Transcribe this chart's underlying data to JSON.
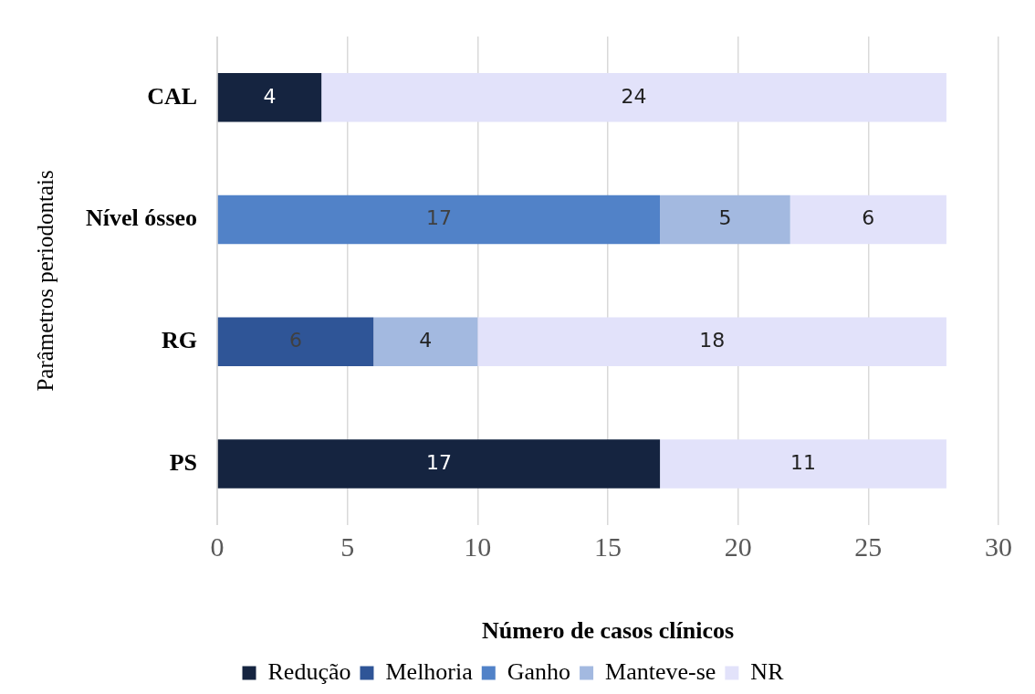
{
  "chart_data": {
    "type": "bar",
    "orientation": "horizontal",
    "stacked": true,
    "categories": [
      "CAL",
      "Nível ósseo",
      "RG",
      "PS"
    ],
    "series": [
      {
        "name": "Redução",
        "color": "#152440",
        "values": [
          4,
          null,
          null,
          17
        ]
      },
      {
        "name": "Melhoria",
        "color": "#2f5597",
        "values": [
          null,
          null,
          6,
          null
        ]
      },
      {
        "name": "Ganho",
        "color": "#5182c8",
        "values": [
          null,
          17,
          null,
          null
        ]
      },
      {
        "name": "Manteve-se",
        "color": "#a3b9e0",
        "values": [
          null,
          5,
          4,
          null
        ]
      },
      {
        "name": "NR",
        "color": "#e2e2fa",
        "values": [
          24,
          6,
          18,
          11
        ]
      }
    ],
    "xlim": [
      0,
      30
    ],
    "xticks": [
      0,
      5,
      10,
      15,
      20,
      25,
      30
    ],
    "xlabel": "Número de casos clínicos",
    "ylabel": "Parâmetros periodontais",
    "grid": "x",
    "legend": "bottom",
    "data_labels": true
  }
}
